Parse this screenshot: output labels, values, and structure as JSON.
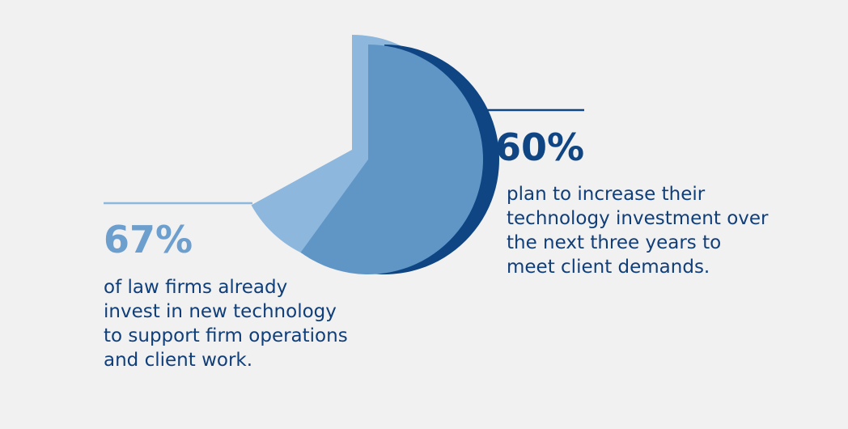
{
  "chart_data": [
    {
      "type": "pie",
      "values": [
        67
      ],
      "value_labels": [
        "67%"
      ],
      "color": "#8db7dc",
      "text": [
        "of law firms already",
        "invest in new technology",
        "to support firm operations",
        "and client work."
      ]
    },
    {
      "type": "pie",
      "values": [
        60
      ],
      "value_labels": [
        "60%"
      ],
      "color": "#5f96c6",
      "shadow_color": "#0e4582",
      "text": [
        "plan to increase their",
        "technology investment over",
        "the next three years to",
        "meet client demands."
      ]
    }
  ]
}
